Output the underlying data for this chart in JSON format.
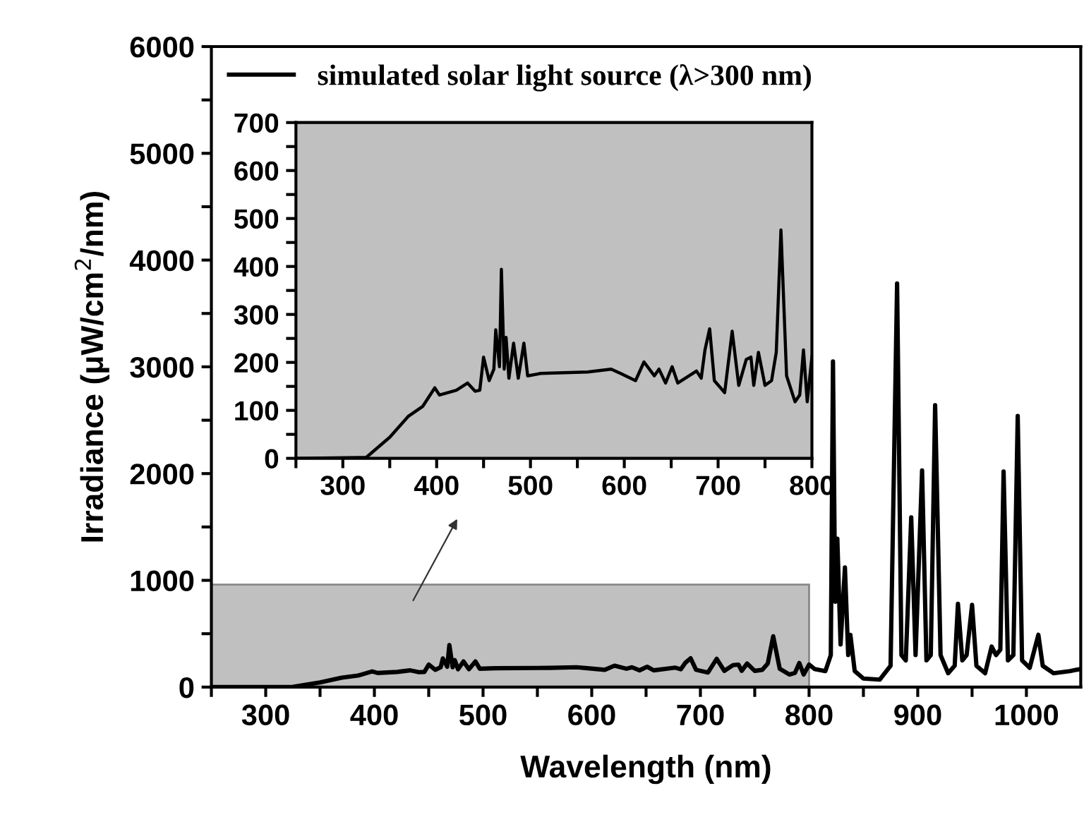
{
  "chart_data": [
    {
      "type": "line",
      "xlabel": "Wavelength (nm)",
      "ylabel": "Irradiance (μW/cm$^{2}$/nm)",
      "legend": "top left",
      "grid": false,
      "marker": "none",
      "line_style": "solid",
      "xlim": [
        250,
        1050
      ],
      "ylim": [
        0,
        6000
      ],
      "xticks": [
        {
          "value": 250,
          "label": null
        },
        300,
        {
          "value": 350,
          "label": null
        },
        400,
        {
          "value": 450,
          "label": null
        },
        500,
        {
          "value": 550,
          "label": null
        },
        600,
        {
          "value": 650,
          "label": null
        },
        700,
        {
          "value": 750,
          "label": null
        },
        800,
        {
          "value": 850,
          "label": null
        },
        900,
        {
          "value": 950,
          "label": null
        },
        1000
      ],
      "yticks": [
        0,
        {
          "value": 500,
          "label": null
        },
        1000,
        {
          "value": 1500,
          "label": null
        },
        2000,
        {
          "value": 2500,
          "label": null
        },
        3000,
        {
          "value": 3500,
          "label": null
        },
        4000,
        {
          "value": 4500,
          "label": null
        },
        5000,
        {
          "value": 5500,
          "label": null
        },
        6000
      ],
      "series": [
        {
          "name": "simulated solar light source (λ>300 nm)",
          "color": "#000000",
          "x": [
            250,
            325,
            350,
            370,
            385,
            398,
            403,
            421,
            433,
            441,
            446,
            450,
            456,
            461,
            463,
            467,
            469,
            472,
            474,
            477,
            482,
            487,
            493,
            497,
            511,
            561,
            586,
            596,
            612,
            621,
            632,
            637,
            644,
            651,
            657,
            677,
            682,
            686,
            691,
            696,
            707,
            715,
            722,
            730,
            735,
            738,
            743,
            750,
            757,
            762,
            767,
            773,
            782,
            787,
            791,
            795,
            800,
            805,
            815,
            820,
            822,
            824,
            826,
            829,
            833,
            836,
            838,
            842,
            850,
            865,
            875,
            881,
            885,
            889,
            894,
            898,
            904,
            908,
            912,
            916,
            921,
            928,
            934,
            937,
            941,
            945,
            950,
            954,
            962,
            968,
            972,
            976,
            979,
            983,
            988,
            992,
            996,
            1003,
            1011,
            1015,
            1025,
            1040,
            1050
          ],
          "values": [
            0,
            2,
            44,
            88,
            108,
            147,
            132,
            142,
            157,
            140,
            142,
            211,
            162,
            186,
            268,
            191,
            394,
            186,
            252,
            167,
            240,
            167,
            240,
            172,
            177,
            180,
            186,
            177,
            162,
            201,
            172,
            186,
            157,
            191,
            157,
            182,
            167,
            226,
            270,
            162,
            137,
            265,
            152,
            206,
            211,
            152,
            221,
            152,
            162,
            221,
            476,
            172,
            118,
            132,
            226,
            118,
            211,
            170,
            150,
            300,
            3050,
            800,
            1390,
            400,
            1120,
            300,
            490,
            150,
            80,
            70,
            200,
            3780,
            300,
            250,
            1590,
            300,
            2030,
            250,
            300,
            2640,
            300,
            130,
            200,
            780,
            250,
            300,
            770,
            200,
            130,
            380,
            300,
            350,
            2020,
            250,
            300,
            2540,
            250,
            180,
            490,
            200,
            130,
            150,
            170
          ]
        }
      ]
    },
    {
      "type": "line",
      "grid": false,
      "marker": "none",
      "line_style": "solid",
      "xlim": [
        250,
        800
      ],
      "ylim": [
        0,
        700
      ],
      "xticks": [
        {
          "value": 250,
          "label": null
        },
        300,
        {
          "value": 350,
          "label": null
        },
        400,
        {
          "value": 450,
          "label": null
        },
        500,
        {
          "value": 550,
          "label": null
        },
        600,
        {
          "value": 650,
          "label": null
        },
        700,
        {
          "value": 750,
          "label": null
        },
        800
      ],
      "yticks": [
        0,
        {
          "value": 50,
          "label": null
        },
        100,
        {
          "value": 150,
          "label": null
        },
        200,
        {
          "value": 250,
          "label": null
        },
        300,
        {
          "value": 350,
          "label": null
        },
        400,
        {
          "value": 450,
          "label": null
        },
        500,
        {
          "value": 550,
          "label": null
        },
        600,
        {
          "value": 650,
          "label": null
        },
        700
      ],
      "series": [
        {
          "color": "#000000",
          "x": [
            250,
            325,
            350,
            370,
            385,
            398,
            403,
            421,
            433,
            441,
            446,
            450,
            456,
            461,
            463,
            467,
            469,
            472,
            474,
            477,
            482,
            487,
            493,
            497,
            511,
            561,
            586,
            596,
            612,
            621,
            632,
            637,
            644,
            651,
            657,
            677,
            682,
            686,
            691,
            696,
            707,
            715,
            722,
            730,
            735,
            738,
            743,
            750,
            757,
            762,
            767,
            773,
            782,
            787,
            791,
            795,
            800
          ],
          "values": [
            0,
            2,
            44,
            88,
            108,
            147,
            132,
            142,
            157,
            140,
            142,
            211,
            162,
            186,
            268,
            191,
            394,
            186,
            252,
            167,
            240,
            167,
            240,
            172,
            177,
            180,
            186,
            177,
            162,
            201,
            172,
            186,
            157,
            191,
            157,
            182,
            167,
            226,
            270,
            162,
            137,
            265,
            152,
            206,
            211,
            152,
            221,
            152,
            162,
            221,
            476,
            172,
            118,
            132,
            226,
            118,
            211
          ]
        }
      ]
    }
  ]
}
